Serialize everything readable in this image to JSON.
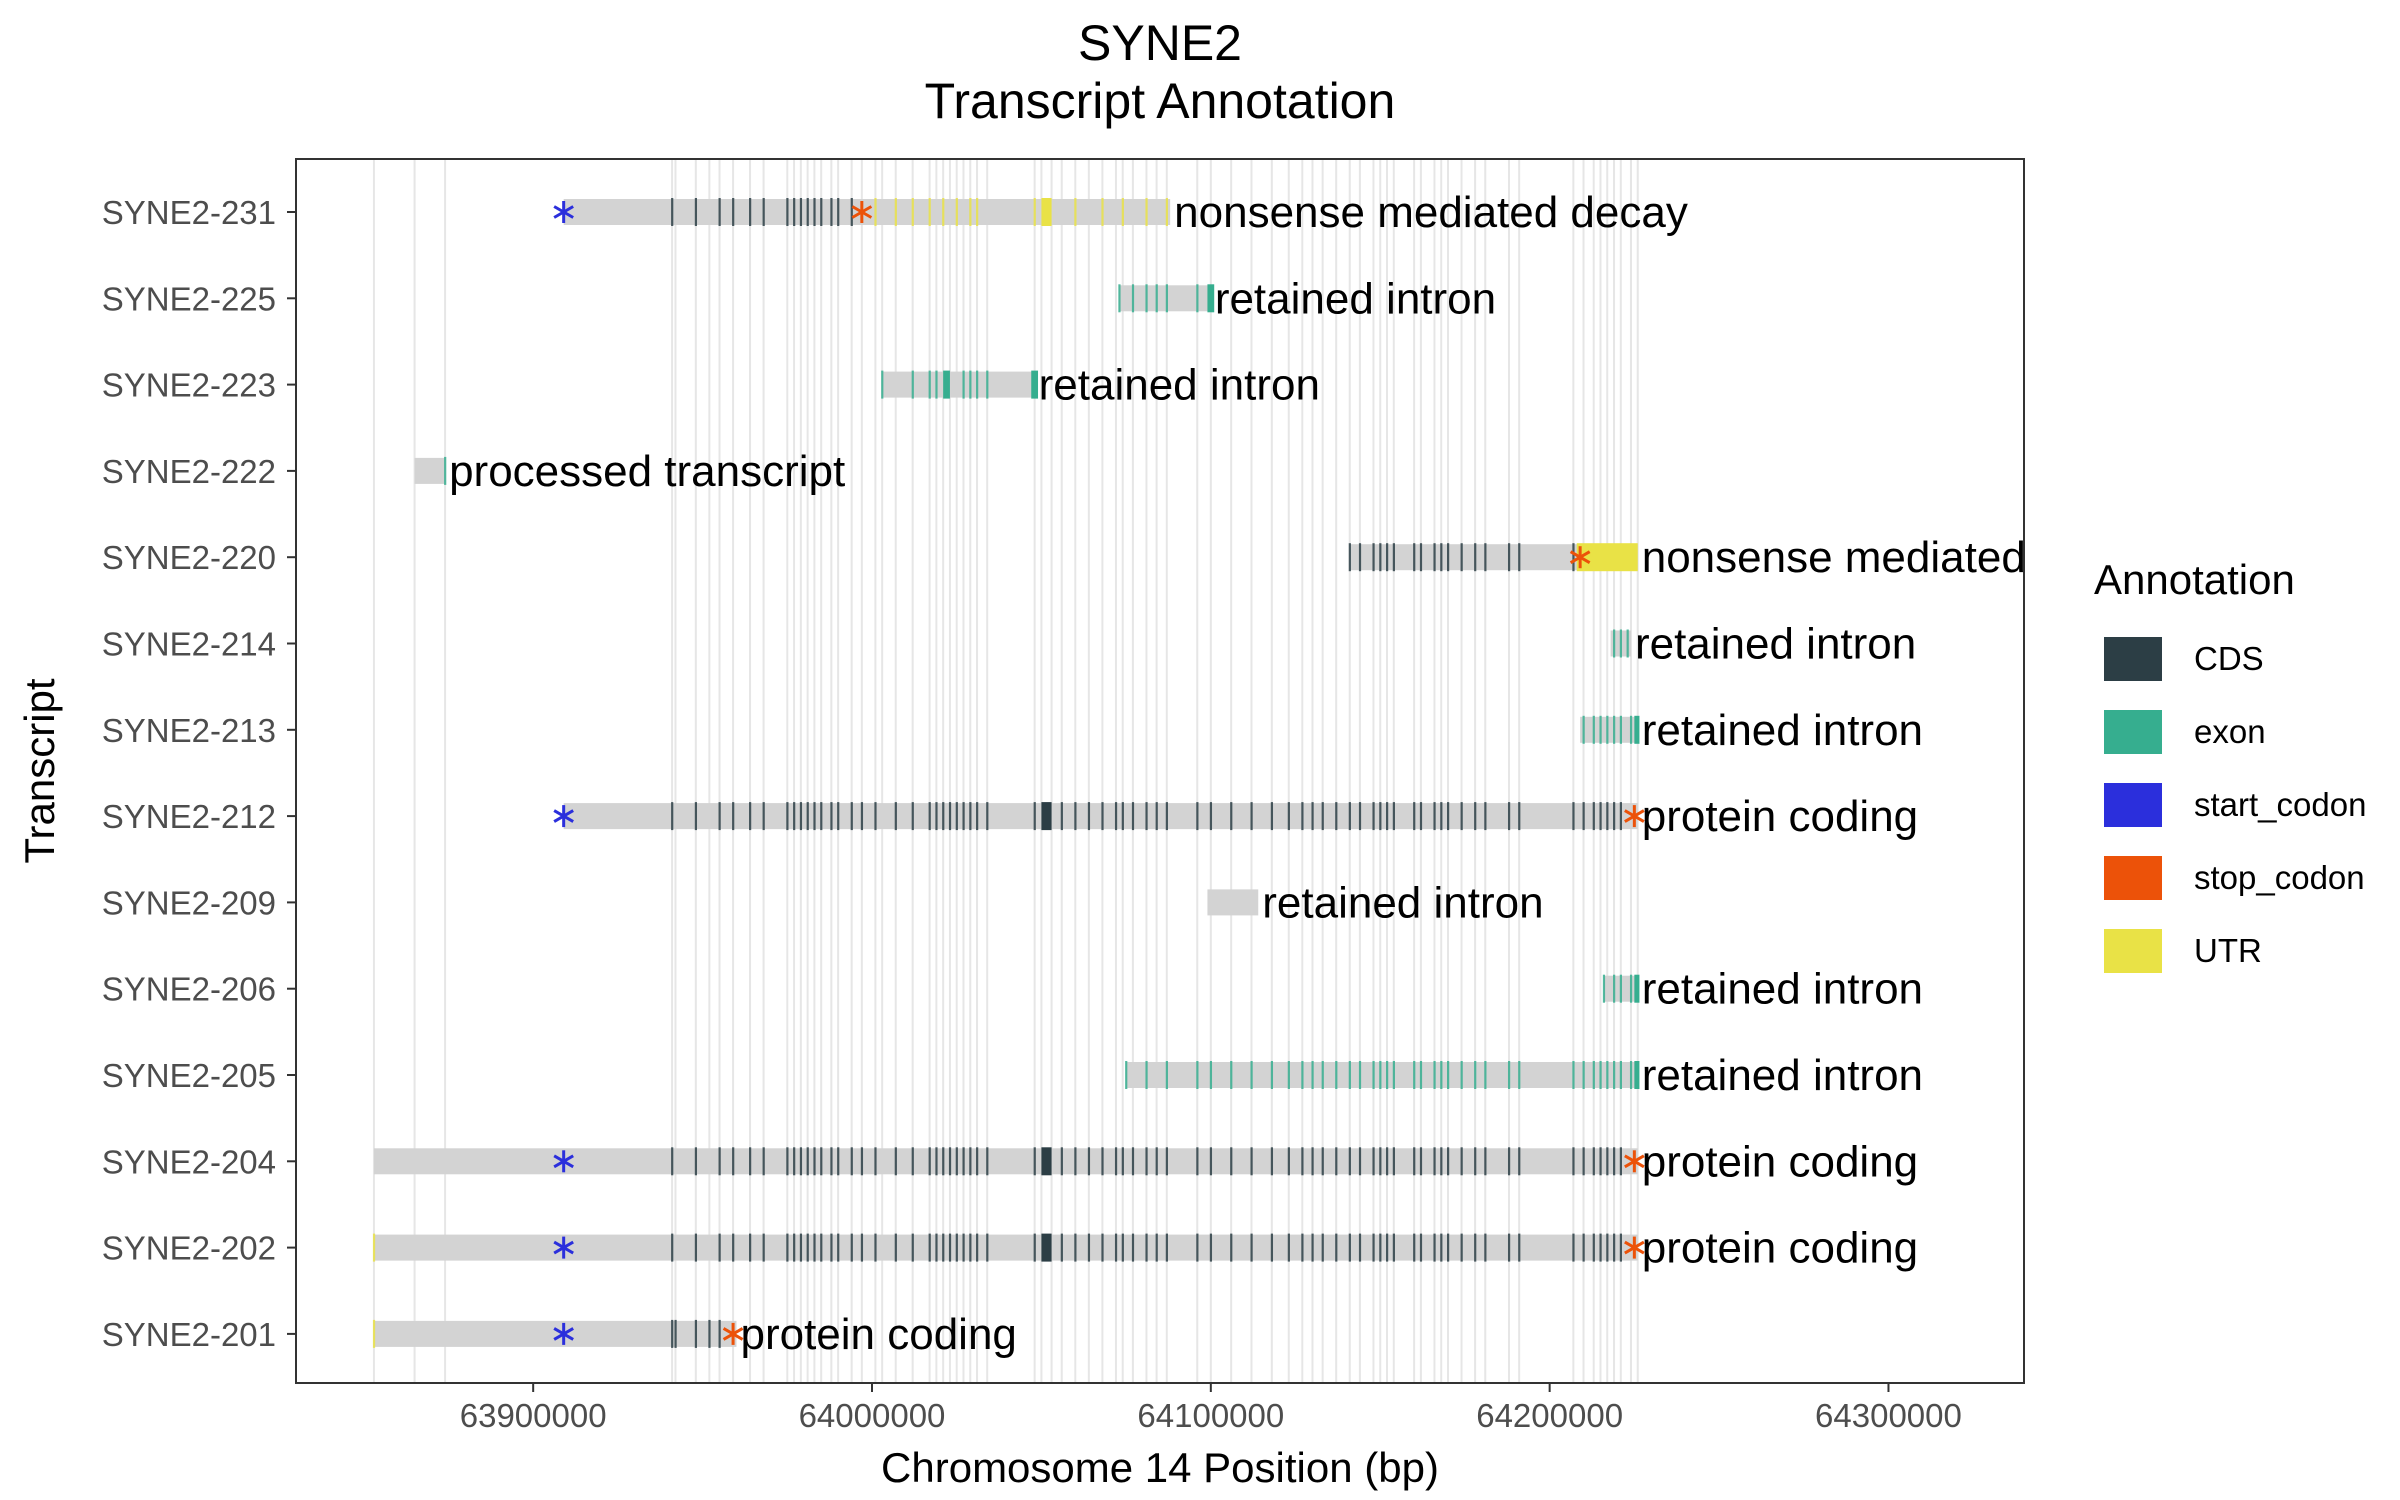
{
  "chart_data": {
    "type": "gene-track",
    "title_lines": [
      "SYNE2",
      "Transcript Annotation"
    ],
    "xlabel": "Chromosome 14 Position (bp)",
    "ylabel": "Transcript",
    "xlim": [
      63830000,
      64340000
    ],
    "x_ticks": [
      63900000,
      64000000,
      64100000,
      64200000,
      64300000
    ],
    "x_tick_labels": [
      "63900000",
      "64000000",
      "64100000",
      "64200000",
      "64300000"
    ],
    "grid": "vertical lines at all exon positions",
    "legend_title": "Annotation",
    "legend_position": "right",
    "legend": [
      {
        "label": "CDS",
        "color": "#2c3e45"
      },
      {
        "label": "exon",
        "color": "#36ae8f"
      },
      {
        "label": "start_codon",
        "color": "#2b2fdc"
      },
      {
        "label": "stop_codon",
        "color": "#ec5209"
      },
      {
        "label": "UTR",
        "color": "#e9e246"
      }
    ],
    "transcript_color": "#d3d3d3",
    "exon_positions": [
      63853000,
      63865000,
      63874000,
      63941000,
      63942000,
      63948000,
      63952000,
      63955000,
      63959000,
      63964000,
      63968000,
      63975000,
      63977000,
      63979000,
      63981000,
      63983000,
      63985000,
      63988000,
      63990000,
      63994000,
      63997000,
      64001000,
      64003000,
      64007000,
      64012000,
      64017000,
      64019000,
      64021000,
      64023000,
      64025000,
      64027000,
      64029000,
      64031000,
      64034000,
      64048000,
      64050000,
      64053000,
      64056000,
      64060000,
      64064000,
      64068000,
      64072000,
      64074000,
      64077000,
      64081000,
      64084000,
      64087000,
      64096000,
      64100000,
      64106000,
      64112000,
      64118000,
      64123000,
      64127000,
      64130000,
      64133000,
      64137000,
      64141000,
      64144000,
      64148000,
      64150000,
      64152000,
      64154000,
      64160000,
      64162000,
      64166000,
      64168000,
      64170000,
      64174000,
      64178000,
      64181000,
      64188000,
      64191000,
      64207000,
      64210000,
      64213000,
      64215000,
      64217000,
      64219000,
      64221000,
      64224000,
      64226000
    ],
    "transcripts": [
      {
        "name": "SYNE2-231",
        "biotype": "nonsense mediated decay",
        "start": 63909000,
        "end": 64088000,
        "start_codon": 63909000,
        "stop_codon": 63997000,
        "features": [
          {
            "type": "CDS",
            "positions": [
              63941000,
              63948000,
              63955000,
              63959000,
              63964000,
              63968000,
              63975000,
              63977000,
              63979000,
              63981000,
              63983000,
              63985000,
              63988000,
              63990000,
              63994000
            ]
          },
          {
            "type": "UTR",
            "positions": [
              64001000,
              64007000,
              64012000,
              64017000,
              64021000,
              64025000,
              64029000,
              64031000,
              64048000,
              64060000,
              64068000,
              64074000,
              64081000,
              64087000
            ]
          },
          {
            "type": "UTR",
            "start": 64050000,
            "end": 64053000
          }
        ]
      },
      {
        "name": "SYNE2-225",
        "biotype": "retained intron",
        "start": 64073000,
        "end": 64100000,
        "features": [
          {
            "type": "exon",
            "positions": [
              64073000,
              64077000,
              64081000,
              64084000,
              64087000,
              64096000
            ]
          },
          {
            "type": "exon",
            "start": 64099000,
            "end": 64101000
          }
        ]
      },
      {
        "name": "SYNE2-223",
        "biotype": "retained intron",
        "start": 64003000,
        "end": 64048000,
        "features": [
          {
            "type": "exon",
            "positions": [
              64003000,
              64012000,
              64017000,
              64019000,
              64027000,
              64029000,
              64031000,
              64034000
            ]
          },
          {
            "type": "exon",
            "start": 64021000,
            "end": 64023000
          },
          {
            "type": "exon",
            "start": 64047000,
            "end": 64049000
          }
        ]
      },
      {
        "name": "SYNE2-222",
        "biotype": "processed transcript",
        "start": 63865000,
        "end": 63874000,
        "features": [
          {
            "type": "exon",
            "positions": [
              63874000
            ]
          }
        ]
      },
      {
        "name": "SYNE2-220",
        "biotype": "nonsense mediated decay",
        "start": 64141000,
        "end": 64226000,
        "stop_codon": 64209000,
        "features": [
          {
            "type": "CDS",
            "positions": [
              64141000,
              64144000,
              64148000,
              64150000,
              64152000,
              64154000,
              64160000,
              64162000,
              64166000,
              64168000,
              64170000,
              64174000,
              64178000,
              64181000,
              64188000,
              64191000,
              64207000
            ]
          },
          {
            "type": "UTR",
            "start": 64208000,
            "end": 64226000
          }
        ]
      },
      {
        "name": "SYNE2-214",
        "biotype": "retained intron",
        "start": 64218000,
        "end": 64224000,
        "features": [
          {
            "type": "exon",
            "positions": [
              64219000,
              64221000,
              64223000
            ]
          }
        ]
      },
      {
        "name": "SYNE2-213",
        "biotype": "retained intron",
        "start": 64209000,
        "end": 64226000,
        "features": [
          {
            "type": "exon",
            "positions": [
              64210000,
              64213000,
              64215000,
              64217000,
              64219000,
              64221000,
              64224000
            ]
          },
          {
            "type": "exon",
            "start": 64225000,
            "end": 64226500
          }
        ]
      },
      {
        "name": "SYNE2-212",
        "biotype": "protein coding",
        "start": 63909000,
        "end": 64226000,
        "start_codon": 63909000,
        "stop_codon": 64225000,
        "features": [
          {
            "type": "CDS",
            "positions": [
              63941000,
              63948000,
              63955000,
              63959000,
              63964000,
              63968000,
              63975000,
              63977000,
              63979000,
              63981000,
              63983000,
              63985000,
              63988000,
              63990000,
              63994000,
              63997000,
              64001000,
              64007000,
              64012000,
              64017000,
              64019000,
              64021000,
              64023000,
              64025000,
              64027000,
              64029000,
              64031000,
              64034000,
              64048000,
              64056000,
              64060000,
              64064000,
              64068000,
              64072000,
              64074000,
              64077000,
              64081000,
              64084000,
              64087000,
              64096000,
              64100000,
              64106000,
              64112000,
              64118000,
              64123000,
              64127000,
              64130000,
              64133000,
              64137000,
              64141000,
              64144000,
              64148000,
              64150000,
              64152000,
              64154000,
              64160000,
              64162000,
              64166000,
              64168000,
              64170000,
              64174000,
              64178000,
              64181000,
              64188000,
              64191000,
              64207000,
              64210000,
              64213000,
              64215000,
              64217000,
              64219000,
              64221000
            ]
          },
          {
            "type": "CDS",
            "start": 64050000,
            "end": 64053000
          }
        ]
      },
      {
        "name": "SYNE2-209",
        "biotype": "retained intron",
        "start": 64099000,
        "end": 64114000,
        "features": []
      },
      {
        "name": "SYNE2-206",
        "biotype": "retained intron",
        "start": 64216000,
        "end": 64226000,
        "features": [
          {
            "type": "exon",
            "positions": [
              64216000,
              64219000,
              64221000,
              64224000
            ]
          },
          {
            "type": "exon",
            "start": 64225000,
            "end": 64226500
          }
        ]
      },
      {
        "name": "SYNE2-205",
        "biotype": "retained intron",
        "start": 64075000,
        "end": 64226000,
        "features": [
          {
            "type": "exon",
            "positions": [
              64075000,
              64081000,
              64087000,
              64096000,
              64100000,
              64106000,
              64112000,
              64118000,
              64123000,
              64127000,
              64130000,
              64133000,
              64137000,
              64141000,
              64144000,
              64148000,
              64150000,
              64152000,
              64154000,
              64160000,
              64162000,
              64166000,
              64168000,
              64170000,
              64174000,
              64178000,
              64181000,
              64188000,
              64191000,
              64207000,
              64210000,
              64213000,
              64215000,
              64217000,
              64219000,
              64221000,
              64224000
            ]
          },
          {
            "type": "exon",
            "start": 64225000,
            "end": 64226500
          }
        ]
      },
      {
        "name": "SYNE2-204",
        "biotype": "protein coding",
        "start": 63853000,
        "end": 64226000,
        "start_codon": 63909000,
        "stop_codon": 64225000,
        "features": [
          {
            "type": "CDS",
            "positions": [
              63941000,
              63948000,
              63955000,
              63959000,
              63964000,
              63968000,
              63975000,
              63977000,
              63979000,
              63981000,
              63983000,
              63985000,
              63988000,
              63990000,
              63994000,
              63997000,
              64001000,
              64007000,
              64012000,
              64017000,
              64019000,
              64021000,
              64023000,
              64025000,
              64027000,
              64029000,
              64031000,
              64034000,
              64048000,
              64056000,
              64060000,
              64064000,
              64068000,
              64072000,
              64074000,
              64077000,
              64081000,
              64084000,
              64087000,
              64096000,
              64100000,
              64106000,
              64112000,
              64118000,
              64123000,
              64127000,
              64130000,
              64133000,
              64137000,
              64141000,
              64144000,
              64148000,
              64150000,
              64152000,
              64154000,
              64160000,
              64162000,
              64166000,
              64168000,
              64170000,
              64174000,
              64178000,
              64181000,
              64188000,
              64191000,
              64207000,
              64210000,
              64213000,
              64215000,
              64217000,
              64219000,
              64221000
            ]
          },
          {
            "type": "CDS",
            "start": 64050000,
            "end": 64053000
          }
        ]
      },
      {
        "name": "SYNE2-202",
        "biotype": "protein coding",
        "start": 63853000,
        "end": 64226000,
        "start_codon": 63909000,
        "stop_codon": 64225000,
        "features": [
          {
            "type": "UTR",
            "positions": [
              63853000
            ]
          },
          {
            "type": "CDS",
            "positions": [
              63941000,
              63948000,
              63955000,
              63959000,
              63964000,
              63968000,
              63975000,
              63977000,
              63979000,
              63981000,
              63983000,
              63985000,
              63988000,
              63990000,
              63994000,
              63997000,
              64001000,
              64007000,
              64012000,
              64017000,
              64019000,
              64021000,
              64023000,
              64025000,
              64027000,
              64029000,
              64031000,
              64034000,
              64048000,
              64056000,
              64060000,
              64064000,
              64068000,
              64072000,
              64074000,
              64077000,
              64081000,
              64084000,
              64087000,
              64096000,
              64100000,
              64106000,
              64112000,
              64118000,
              64123000,
              64127000,
              64130000,
              64133000,
              64137000,
              64141000,
              64144000,
              64148000,
              64150000,
              64152000,
              64154000,
              64160000,
              64162000,
              64166000,
              64168000,
              64170000,
              64174000,
              64178000,
              64181000,
              64188000,
              64191000,
              64207000,
              64210000,
              64213000,
              64215000,
              64217000,
              64219000,
              64221000
            ]
          },
          {
            "type": "CDS",
            "start": 64050000,
            "end": 64053000
          }
        ]
      },
      {
        "name": "SYNE2-201",
        "biotype": "protein coding",
        "start": 63853000,
        "end": 63960000,
        "start_codon": 63909000,
        "stop_codon": 63959000,
        "features": [
          {
            "type": "UTR",
            "positions": [
              63853000
            ]
          },
          {
            "type": "CDS",
            "positions": [
              63941000,
              63942000,
              63948000,
              63952000,
              63955000
            ]
          }
        ]
      }
    ]
  }
}
